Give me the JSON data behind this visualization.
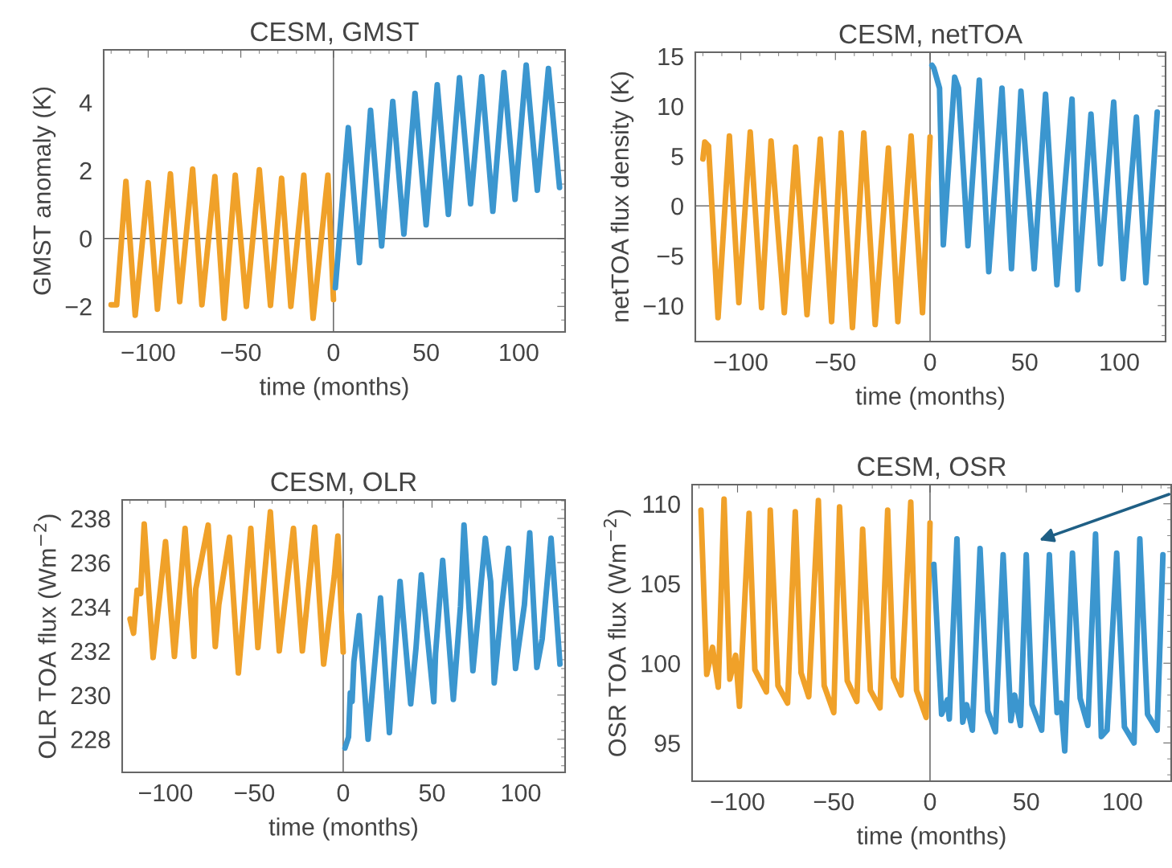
{
  "chart_data": [
    {
      "type": "line",
      "title": "CESM, GMST",
      "xlabel": "time (months)",
      "ylabel": "GMST anomaly (K)",
      "xlim": [
        -124,
        125
      ],
      "ylim": [
        -2.75,
        5.55
      ],
      "xticks": [
        -100,
        -50,
        0,
        50,
        100
      ],
      "yticks": [
        -2,
        0,
        2,
        4
      ],
      "ref_lines": [
        {
          "axis": "x",
          "value": 0,
          "color": "#555555"
        },
        {
          "axis": "y",
          "value": 0,
          "color": "#555555"
        }
      ],
      "series": [
        {
          "color": "#f0a129",
          "x": [
            -120,
            -117,
            -112,
            -107,
            -100,
            -95,
            -88,
            -83,
            -76,
            -71,
            -64,
            -59,
            -53,
            -47,
            -40,
            -34,
            -28,
            -23,
            -16,
            -11,
            -3,
            0
          ],
          "values": [
            -1.95,
            -1.95,
            1.68,
            -2.26,
            1.64,
            -2.08,
            1.9,
            -1.86,
            2.04,
            -1.95,
            1.82,
            -2.35,
            1.86,
            -2.0,
            2.02,
            -1.97,
            1.77,
            -2.0,
            1.86,
            -2.35,
            1.86,
            -1.8
          ]
        },
        {
          "color": "#3b96cf",
          "x": [
            1,
            8,
            14,
            20,
            26,
            32,
            38,
            44,
            50,
            56,
            62,
            68,
            74,
            80,
            86,
            92,
            98,
            104,
            110,
            116,
            122
          ],
          "values": [
            -1.45,
            3.26,
            -0.71,
            3.77,
            -0.22,
            4.03,
            0.13,
            4.27,
            0.4,
            4.52,
            0.71,
            4.73,
            1.02,
            4.76,
            0.8,
            4.88,
            1.15,
            5.1,
            1.42,
            5.0,
            1.5
          ]
        }
      ]
    },
    {
      "type": "line",
      "title": "CESM, netTOA",
      "xlabel": "time (months)",
      "ylabel": "netTOA flux density (K)",
      "xlim": [
        -124,
        124.4
      ],
      "ylim": [
        -13.6,
        15.4
      ],
      "xticks": [
        -100,
        -50,
        0,
        50,
        100
      ],
      "yticks": [
        -10,
        -5,
        0,
        5,
        10,
        15
      ],
      "ref_lines": [
        {
          "axis": "x",
          "value": 0,
          "color": "#555555"
        },
        {
          "axis": "y",
          "value": 0,
          "color": "#555555"
        }
      ],
      "series": [
        {
          "color": "#f0a129",
          "x": [
            -120,
            -119,
            -117,
            -112,
            -106,
            -101,
            -95,
            -89,
            -84,
            -77,
            -71,
            -65,
            -58,
            -52,
            -47,
            -41,
            -35,
            -29,
            -22,
            -17,
            -10,
            -4,
            0
          ],
          "values": [
            4.7,
            6.4,
            6.0,
            -11.2,
            7.0,
            -9.7,
            7.4,
            -10.2,
            6.5,
            -10.7,
            5.9,
            -10.9,
            6.7,
            -11.6,
            7.3,
            -12.2,
            7.3,
            -11.9,
            5.8,
            -11.6,
            7.0,
            -10.7,
            6.9
          ]
        },
        {
          "color": "#3b96cf",
          "x": [
            1,
            2,
            5,
            7,
            13,
            15,
            20,
            26,
            31,
            38,
            43,
            48,
            55,
            61,
            67,
            75,
            78,
            85,
            90,
            97,
            102,
            109,
            114,
            120
          ],
          "values": [
            14.1,
            13.8,
            11.8,
            -3.9,
            12.9,
            11.8,
            -4.0,
            12.6,
            -6.6,
            11.8,
            -6.3,
            11.5,
            -6.3,
            11.2,
            -7.9,
            10.7,
            -8.4,
            9.2,
            -5.8,
            10.4,
            -7.3,
            8.9,
            -7.7,
            9.4
          ]
        }
      ]
    },
    {
      "type": "line",
      "title": "CESM, OLR",
      "xlabel": "time (months)",
      "ylabel": "OLR TOA flux (Wm$^{−2}$)",
      "xlim": [
        -124.4,
        124.9
      ],
      "ylim": [
        226.5,
        238.84
      ],
      "xticks": [
        -100,
        -50,
        0,
        50,
        100
      ],
      "yticks": [
        228,
        230,
        232,
        234,
        236,
        238
      ],
      "ref_lines": [
        {
          "axis": "x",
          "value": 0,
          "color": "#555555"
        }
      ],
      "series": [
        {
          "color": "#f0a129",
          "x": [
            -120,
            -118,
            -116,
            -114,
            -112,
            -107,
            -100,
            -95,
            -89,
            -84,
            -83,
            -76,
            -72,
            -70,
            -64,
            -59,
            -52,
            -48,
            -41,
            -36,
            -28,
            -23,
            -16,
            -11,
            -5,
            -3,
            0
          ],
          "values": [
            233.45,
            232.8,
            234.75,
            234.6,
            237.75,
            231.7,
            236.95,
            231.75,
            237.55,
            231.75,
            234.8,
            237.7,
            232.2,
            234.1,
            237.15,
            231.0,
            237.55,
            232.15,
            238.3,
            232.0,
            237.55,
            232.0,
            237.6,
            231.4,
            235.4,
            237.2,
            231.95
          ]
        },
        {
          "color": "#3b96cf",
          "x": [
            1,
            3,
            4,
            5,
            6,
            9,
            14,
            21,
            26,
            32,
            38,
            41,
            44,
            51,
            52,
            56,
            62,
            66,
            68,
            73,
            77,
            80,
            83,
            85,
            89,
            93,
            97,
            102,
            105,
            109,
            112,
            117,
            122
          ],
          "values": [
            227.6,
            228.1,
            230.1,
            229.7,
            231.5,
            233.6,
            228.0,
            234.4,
            228.3,
            235.15,
            229.6,
            232.15,
            235.45,
            229.7,
            231.9,
            236.1,
            229.8,
            234.0,
            237.7,
            231.1,
            234.5,
            237.1,
            235.15,
            230.55,
            233.85,
            236.65,
            231.2,
            234.1,
            237.35,
            231.25,
            232.55,
            237.1,
            231.4
          ]
        }
      ]
    },
    {
      "type": "line",
      "title": "CESM, OSR",
      "xlabel": "time (months)",
      "ylabel": "OSR TOA flux (Wm$^{−2}$)",
      "xlim": [
        -123.6,
        125.3
      ],
      "ylim": [
        92.6,
        111.2
      ],
      "xticks": [
        -100,
        -50,
        0,
        50,
        100
      ],
      "yticks": [
        95,
        100,
        105,
        110
      ],
      "ref_lines": [
        {
          "axis": "x",
          "value": 0,
          "color": "#555555"
        }
      ],
      "series": [
        {
          "color": "#f0a129",
          "x": [
            -119,
            -116,
            -113,
            -110,
            -107,
            -104,
            -101,
            -99,
            -94,
            -91,
            -85,
            -83,
            -79,
            -74,
            -70,
            -67,
            -63,
            -58,
            -55,
            -50,
            -47,
            -43,
            -38,
            -35,
            -31,
            -26,
            -22,
            -19,
            -15,
            -10,
            -7,
            -2,
            0
          ],
          "values": [
            109.6,
            99.3,
            101.0,
            98.5,
            110.3,
            99.0,
            100.5,
            97.3,
            109.4,
            99.6,
            98.2,
            109.6,
            98.6,
            97.5,
            109.5,
            99.4,
            97.9,
            110.2,
            98.6,
            96.9,
            109.8,
            98.9,
            97.6,
            108.4,
            98.3,
            97.2,
            109.6,
            99.1,
            98.0,
            110.1,
            98.3,
            96.6,
            108.8
          ]
        },
        {
          "color": "#3b96cf",
          "x": [
            2,
            6,
            9,
            10,
            14,
            17,
            19,
            22,
            26,
            30,
            34,
            38,
            42,
            44,
            47,
            50,
            53,
            58,
            62,
            66,
            68,
            70,
            74,
            78,
            82,
            86,
            89,
            92,
            97,
            101,
            106,
            109,
            113,
            118,
            121
          ],
          "values": [
            106.2,
            96.8,
            97.7,
            96.5,
            107.8,
            96.3,
            97.4,
            95.8,
            107.2,
            97.0,
            95.7,
            106.8,
            96.4,
            98.0,
            96.1,
            106.8,
            97.4,
            95.8,
            106.8,
            96.9,
            97.5,
            94.5,
            106.9,
            97.8,
            96.1,
            108.1,
            95.4,
            95.8,
            106.9,
            96.0,
            95.0,
            107.8,
            96.8,
            95.8,
            106.8
          ]
        }
      ]
    }
  ]
}
